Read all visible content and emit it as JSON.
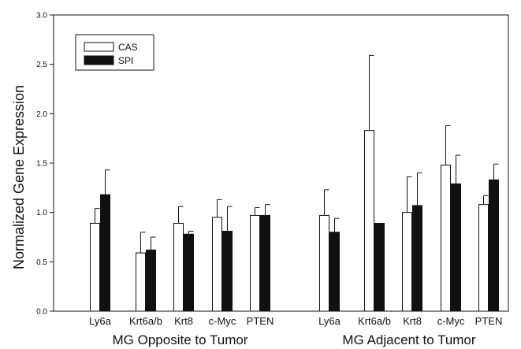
{
  "chart_data": {
    "type": "bar",
    "ylabel": "Normalized Gene Expression",
    "ylim": [
      0,
      3.0
    ],
    "yticks": [
      "0.0",
      "0.5",
      "1.0",
      "1.5",
      "2.0",
      "2.5",
      "3.0"
    ],
    "legend_position": "top-left",
    "grid": false,
    "error_bars": true,
    "groups": [
      {
        "label": "MG Opposite to Tumor",
        "categories": [
          "Ly6a",
          "Krt6a/b",
          "Krt8",
          "c-Myc",
          "PTEN"
        ],
        "series": [
          {
            "name": "CAS",
            "values": [
              0.89,
              0.59,
              0.89,
              0.95,
              0.97
            ],
            "errors": [
              0.15,
              0.21,
              0.17,
              0.18,
              0.08
            ]
          },
          {
            "name": "SPI",
            "values": [
              1.18,
              0.62,
              0.78,
              0.81,
              0.97
            ],
            "errors": [
              0.25,
              0.13,
              0.03,
              0.25,
              0.11
            ]
          }
        ]
      },
      {
        "label": "MG Adjacent to Tumor",
        "categories": [
          "Ly6a",
          "Krt6a/b",
          "Krt8",
          "c-Myc",
          "PTEN"
        ],
        "series": [
          {
            "name": "CAS",
            "values": [
              0.97,
              1.83,
              1.0,
              1.48,
              1.08
            ],
            "errors": [
              0.26,
              0.76,
              0.36,
              0.4,
              0.09
            ]
          },
          {
            "name": "SPI",
            "values": [
              0.8,
              0.89,
              1.07,
              1.29,
              1.33
            ],
            "errors": [
              0.14,
              0.0,
              0.33,
              0.29,
              0.16
            ]
          }
        ]
      }
    ],
    "colors": {
      "CAS": "#ffffff",
      "SPI": "#111111",
      "stroke": "#111111"
    }
  }
}
